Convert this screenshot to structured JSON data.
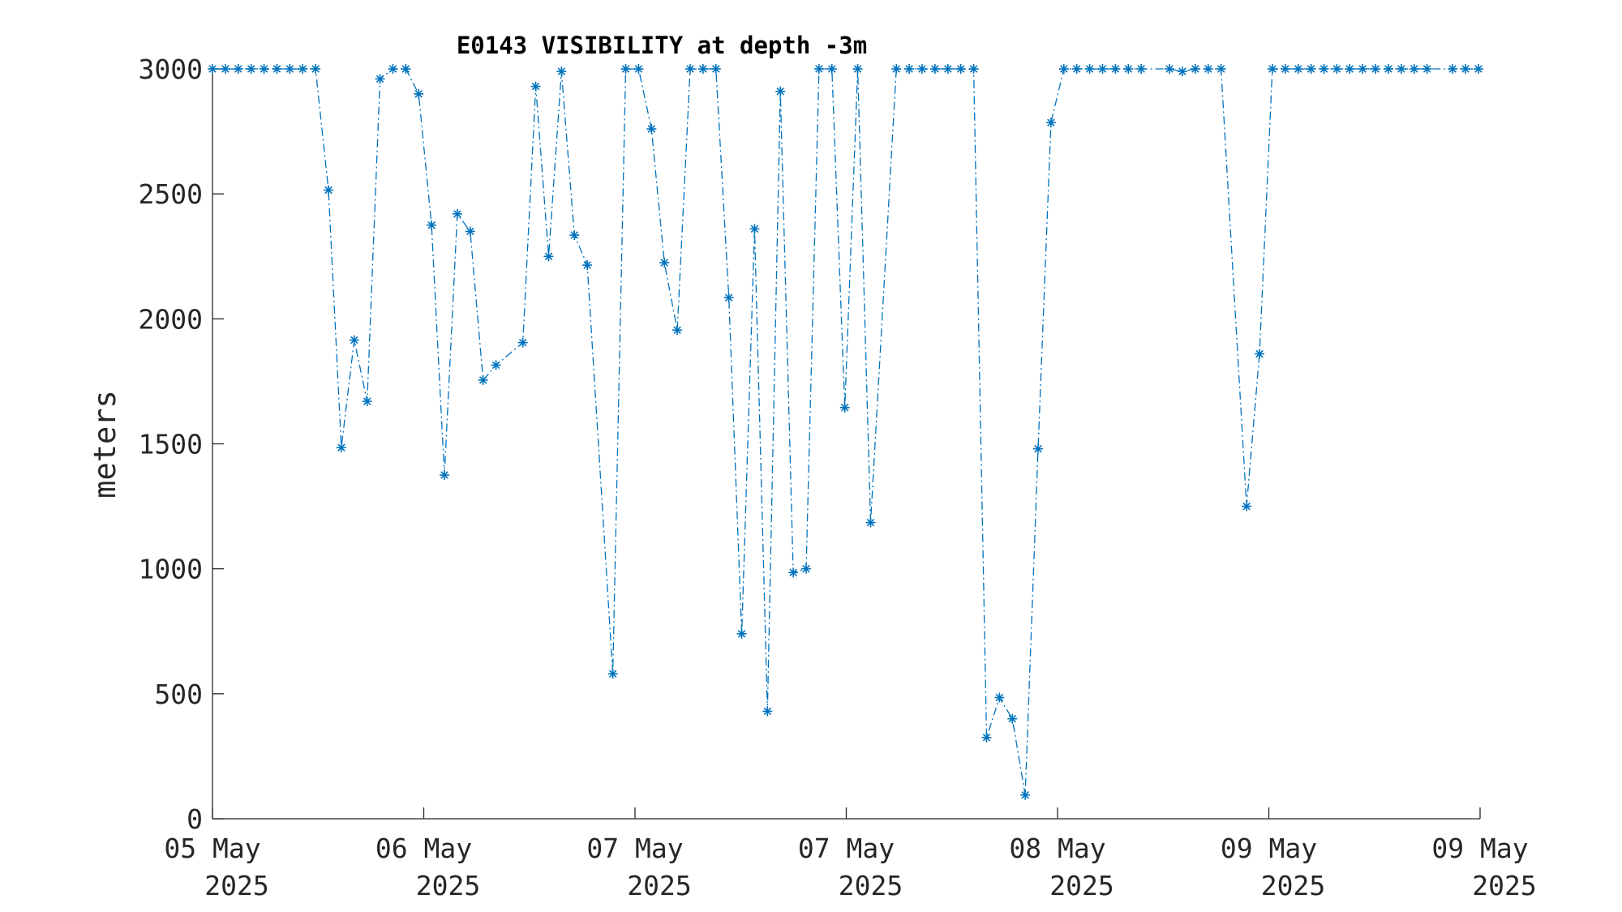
{
  "chart_data": {
    "type": "line",
    "title": "E0143 VISIBILITY at depth -3m",
    "xlabel": "",
    "ylabel": "meters",
    "ylim": [
      0,
      3000
    ],
    "xlim": [
      0,
      6
    ],
    "yticks": [
      0,
      500,
      1000,
      1500,
      2000,
      2500,
      3000
    ],
    "xticks": [
      {
        "value": 0,
        "line1": "05 May",
        "line2": "2025"
      },
      {
        "value": 1,
        "line1": "06 May",
        "line2": "2025"
      },
      {
        "value": 2,
        "line1": "07 May",
        "line2": "2025"
      },
      {
        "value": 3,
        "line1": "07 May",
        "line2": "2025"
      },
      {
        "value": 4,
        "line1": "08 May",
        "line2": "2025"
      },
      {
        "value": 5,
        "line1": "09 May",
        "line2": "2025"
      },
      {
        "value": 6,
        "line1": "09 May",
        "line2": "2025"
      }
    ],
    "grid": false,
    "line_style": "dash-dot",
    "marker": "asterisk",
    "color": "#0072BD",
    "series": [
      {
        "x": [
          0.0,
          0.061,
          0.122,
          0.183,
          0.244,
          0.305,
          0.366,
          0.427,
          0.488,
          0.549,
          0.61,
          0.671,
          0.732,
          0.793,
          0.854,
          0.915,
          0.976,
          1.037,
          1.098,
          1.159,
          1.22,
          1.281,
          1.342,
          1.469,
          1.53,
          1.591,
          1.652,
          1.713,
          1.774,
          1.895,
          1.956,
          2.017,
          2.078,
          2.139,
          2.2,
          2.261,
          2.322,
          2.383,
          2.444,
          2.505,
          2.566,
          2.627,
          2.688,
          2.749,
          2.81,
          2.871,
          2.932,
          2.993,
          3.054,
          3.115,
          3.237,
          3.298,
          3.359,
          3.42,
          3.481,
          3.542,
          3.603,
          3.664,
          3.725,
          3.786,
          3.847,
          3.908,
          3.969,
          4.03,
          4.091,
          4.152,
          4.213,
          4.274,
          4.335,
          4.396,
          4.53,
          4.591,
          4.652,
          4.713,
          4.774,
          4.895,
          4.956,
          5.017,
          5.078,
          5.139,
          5.2,
          5.261,
          5.322,
          5.383,
          5.444,
          5.505,
          5.566,
          5.627,
          5.688,
          5.749,
          5.87,
          5.931,
          5.992
        ],
        "values": [
          3000,
          3000,
          3000,
          3000,
          3000,
          3000,
          3000,
          3000,
          3000,
          2515,
          1485,
          1915,
          1670,
          2960,
          3000,
          3000,
          2900,
          2375,
          1375,
          2420,
          2350,
          1755,
          1815,
          1905,
          2930,
          2250,
          2990,
          2335,
          2215,
          580,
          3000,
          3000,
          2760,
          2225,
          1955,
          3000,
          3000,
          3000,
          2085,
          740,
          2360,
          430,
          2910,
          985,
          1000,
          3000,
          3000,
          1645,
          3000,
          1185,
          3000,
          3000,
          3000,
          3000,
          3000,
          3000,
          3000,
          325,
          485,
          400,
          95,
          1480,
          2785,
          3000,
          3000,
          3000,
          3000,
          3000,
          3000,
          3000,
          3000,
          2990,
          3000,
          3000,
          3000,
          1250,
          1860,
          3000,
          3000,
          3000,
          3000,
          3000,
          3000,
          3000,
          3000,
          3000,
          3000,
          3000,
          3000,
          3000,
          3000,
          3000,
          3000
        ]
      }
    ]
  }
}
